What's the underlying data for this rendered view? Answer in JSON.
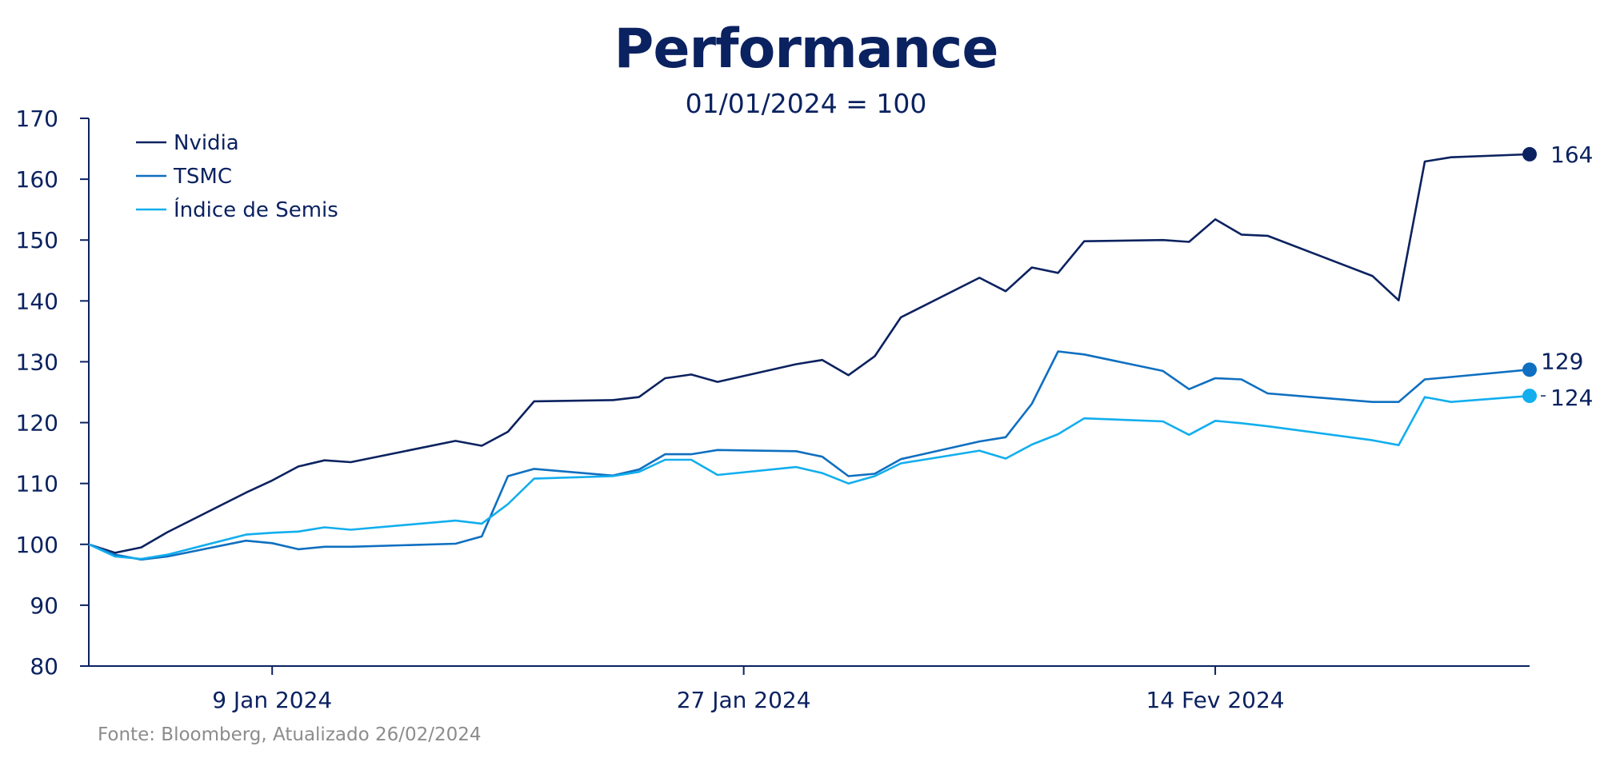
{
  "chart_data": {
    "type": "line",
    "title": "Performance",
    "subtitle": "01/01/2024 = 100",
    "source": "Fonte: Bloomberg, Atualizado 26/02/2024",
    "ylim": [
      80,
      170
    ],
    "yticks": [
      80,
      90,
      100,
      110,
      120,
      130,
      140,
      150,
      160,
      170
    ],
    "xlim": [
      "2024-01-02",
      "2024-02-26"
    ],
    "xticks": [
      {
        "date": "2024-01-09",
        "label": "9 Jan 2024"
      },
      {
        "date": "2024-01-27",
        "label": "27 Jan 2024"
      },
      {
        "date": "2024-02-14",
        "label": "14 Fev 2024"
      }
    ],
    "grid": false,
    "legend": "top-left",
    "series": [
      {
        "name": "Nvidia",
        "color": "#0b2260",
        "end_label": "164",
        "x": [
          "2024-01-02",
          "2024-01-03",
          "2024-01-04",
          "2024-01-05",
          "2024-01-08",
          "2024-01-09",
          "2024-01-10",
          "2024-01-11",
          "2024-01-12",
          "2024-01-16",
          "2024-01-17",
          "2024-01-18",
          "2024-01-19",
          "2024-01-22",
          "2024-01-23",
          "2024-01-24",
          "2024-01-25",
          "2024-01-26",
          "2024-01-29",
          "2024-01-30",
          "2024-01-31",
          "2024-02-01",
          "2024-02-02",
          "2024-02-05",
          "2024-02-06",
          "2024-02-07",
          "2024-02-08",
          "2024-02-09",
          "2024-02-12",
          "2024-02-13",
          "2024-02-14",
          "2024-02-15",
          "2024-02-16",
          "2024-02-20",
          "2024-02-21",
          "2024-02-22",
          "2024-02-23",
          "2024-02-26"
        ],
        "values": [
          100,
          98.6,
          99.5,
          102,
          108.5,
          110.5,
          112.8,
          113.8,
          113.5,
          117,
          116.2,
          118.5,
          123.5,
          123.7,
          124.2,
          127.3,
          127.9,
          126.7,
          129.6,
          130.3,
          127.8,
          130.9,
          137.3,
          143.8,
          141.6,
          145.5,
          144.6,
          149.8,
          150,
          149.7,
          153.4,
          150.9,
          150.7,
          144.1,
          140.1,
          162.9,
          163.6,
          164.1
        ]
      },
      {
        "name": "TSMC",
        "color": "#0f6fc0",
        "end_label": "129",
        "x": [
          "2024-01-02",
          "2024-01-03",
          "2024-01-04",
          "2024-01-05",
          "2024-01-08",
          "2024-01-09",
          "2024-01-10",
          "2024-01-11",
          "2024-01-12",
          "2024-01-16",
          "2024-01-17",
          "2024-01-18",
          "2024-01-19",
          "2024-01-22",
          "2024-01-23",
          "2024-01-24",
          "2024-01-25",
          "2024-01-26",
          "2024-01-29",
          "2024-01-30",
          "2024-01-31",
          "2024-02-01",
          "2024-02-02",
          "2024-02-05",
          "2024-02-06",
          "2024-02-07",
          "2024-02-08",
          "2024-02-09",
          "2024-02-12",
          "2024-02-13",
          "2024-02-14",
          "2024-02-15",
          "2024-02-16",
          "2024-02-20",
          "2024-02-21",
          "2024-02-22",
          "2024-02-23",
          "2024-02-26"
        ],
        "values": [
          100,
          98.3,
          97.5,
          98,
          100.6,
          100.2,
          99.2,
          99.6,
          99.6,
          100.1,
          101.3,
          111.2,
          112.4,
          111.3,
          112.3,
          114.8,
          114.8,
          115.5,
          115.3,
          114.4,
          111.2,
          111.6,
          114,
          116.9,
          117.6,
          123.1,
          131.7,
          131.2,
          128.5,
          125.5,
          127.3,
          127.1,
          124.8,
          123.4,
          123.4,
          127.1,
          127.5,
          128.7
        ]
      },
      {
        "name": "Índice de Semis",
        "color": "#12aeee",
        "end_label": "124",
        "x": [
          "2024-01-02",
          "2024-01-03",
          "2024-01-04",
          "2024-01-05",
          "2024-01-08",
          "2024-01-09",
          "2024-01-10",
          "2024-01-11",
          "2024-01-12",
          "2024-01-16",
          "2024-01-17",
          "2024-01-18",
          "2024-01-19",
          "2024-01-22",
          "2024-01-23",
          "2024-01-24",
          "2024-01-25",
          "2024-01-26",
          "2024-01-29",
          "2024-01-30",
          "2024-01-31",
          "2024-02-01",
          "2024-02-02",
          "2024-02-05",
          "2024-02-06",
          "2024-02-07",
          "2024-02-08",
          "2024-02-09",
          "2024-02-12",
          "2024-02-13",
          "2024-02-14",
          "2024-02-15",
          "2024-02-16",
          "2024-02-20",
          "2024-02-21",
          "2024-02-22",
          "2024-02-23",
          "2024-02-26"
        ],
        "values": [
          100,
          98,
          97.6,
          98.3,
          101.6,
          101.9,
          102.1,
          102.8,
          102.4,
          103.9,
          103.4,
          106.6,
          110.8,
          111.2,
          111.9,
          113.9,
          113.9,
          111.4,
          112.7,
          111.7,
          110,
          111.2,
          113.3,
          115.4,
          114.1,
          116.4,
          118.1,
          120.7,
          120.2,
          118,
          120.3,
          119.9,
          119.4,
          117.1,
          116.3,
          124.2,
          123.4,
          124.4
        ]
      }
    ]
  }
}
